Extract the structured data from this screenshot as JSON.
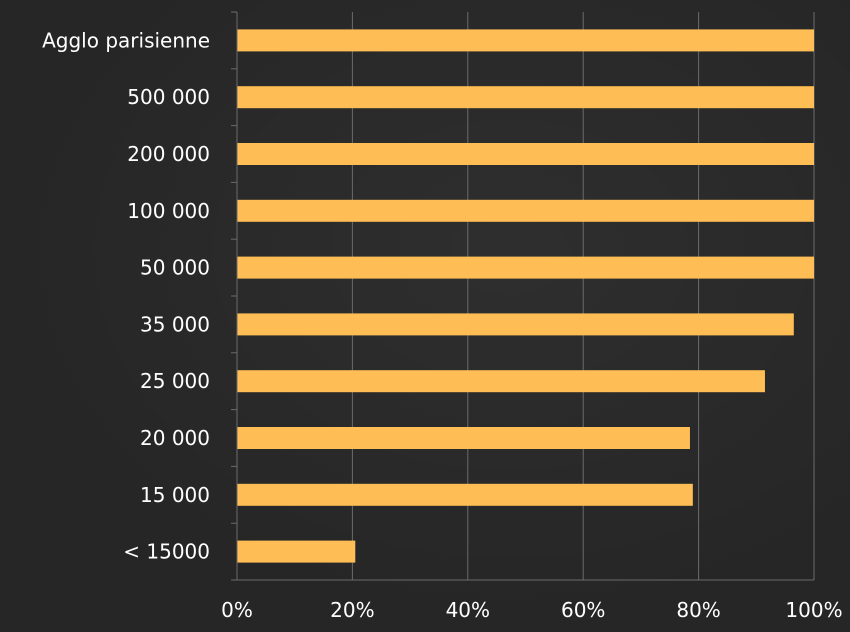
{
  "chart_data": {
    "type": "bar",
    "orientation": "horizontal",
    "categories": [
      "Agglo parisienne",
      "500 000",
      "200 000",
      "100 000",
      "50 000",
      "35 000",
      "25 000",
      "20 000",
      "15 000",
      "< 15000"
    ],
    "values": [
      100,
      100,
      100,
      100,
      100,
      96.5,
      91.5,
      78.5,
      79,
      20.5
    ],
    "xlim": [
      0,
      100
    ],
    "xticks": [
      "0%",
      "20%",
      "40%",
      "60%",
      "80%",
      "100%"
    ],
    "grid": true,
    "bar_color": "#FFBE55",
    "background_color": "#262626",
    "grid_color": "#6b6b6b"
  }
}
